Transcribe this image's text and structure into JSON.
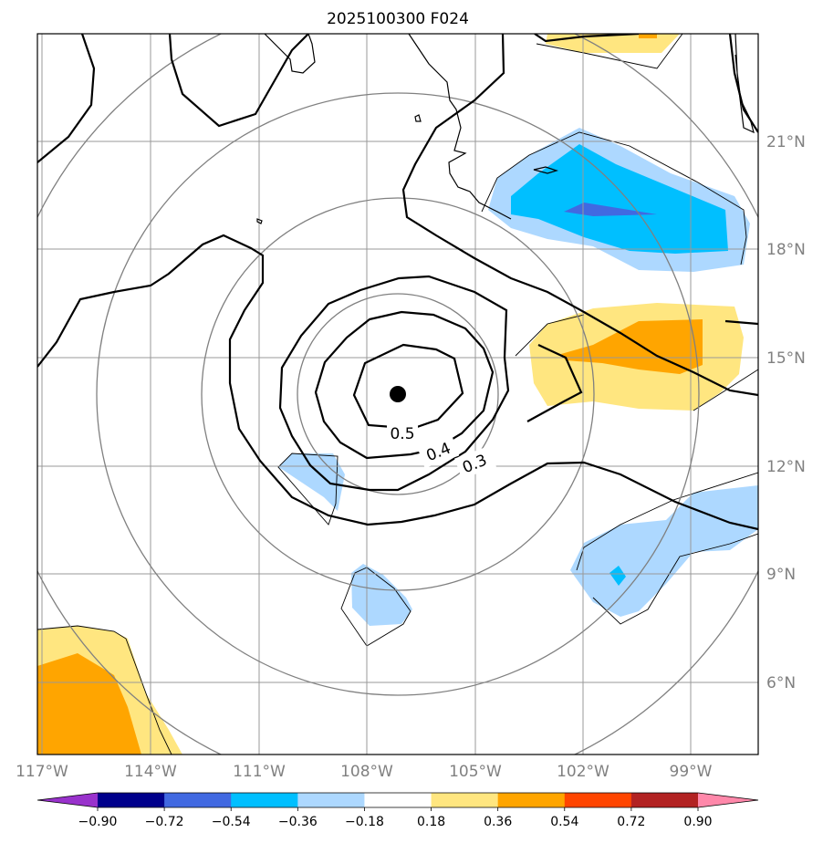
{
  "title": "2025100300 F024",
  "longitude_labels": [
    "117°W",
    "114°W",
    "111°W",
    "108°W",
    "105°W",
    "102°W",
    "99°W"
  ],
  "latitude_labels": [
    "21°N",
    "18°N",
    "15°N",
    "12°N",
    "9°N",
    "6°N"
  ],
  "contour_labels": [
    "0.5",
    "0.4",
    "0.3"
  ],
  "colorbar": {
    "ticks": [
      "−0.90",
      "−0.72",
      "−0.54",
      "−0.36",
      "−0.18",
      "0.18",
      "0.36",
      "0.54",
      "0.72",
      "0.90"
    ],
    "colors": [
      "#9932cc",
      "#00008b",
      "#4169e1",
      "#00bfff",
      "#add8ff",
      "#ffffff",
      "#ffe680",
      "#ffa500",
      "#ff4500",
      "#b22222",
      "#ff88aa"
    ]
  },
  "storm_center_marker": "black-dot",
  "colors": {
    "land_outline": "#000000",
    "gridlines": "#999999",
    "range_rings": "#808080",
    "contours": "#000000"
  }
}
